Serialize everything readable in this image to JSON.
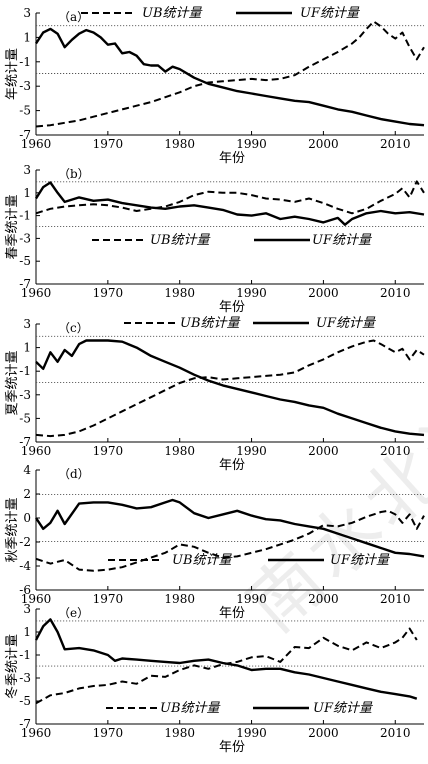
{
  "style": {
    "line_color": "#000000",
    "ref_color": "#555555"
  },
  "watermark": "南水北调",
  "legend_labels": {
    "ub": "UB统计量",
    "uf": "UF统计量"
  },
  "chart_data": [
    {
      "id": "a",
      "type": "line",
      "panel_label": "（a）",
      "xlabel": "年份",
      "ylabel": "年统计量",
      "xlim": [
        1960,
        2014
      ],
      "ylim": [
        -7,
        3
      ],
      "xticks": [
        1960,
        1970,
        1980,
        1990,
        2000,
        2010
      ],
      "yticks": [
        3,
        1,
        -1,
        -3,
        -5,
        -7
      ],
      "ref_lines": [
        1.96,
        -1.96
      ],
      "legend_position": "top",
      "series": [
        {
          "name": "UB统计量",
          "style": "dashed",
          "x": [
            1960,
            1962,
            1964,
            1966,
            1968,
            1970,
            1972,
            1974,
            1976,
            1978,
            1980,
            1982,
            1984,
            1986,
            1988,
            1990,
            1992,
            1994,
            1996,
            1998,
            2000,
            2002,
            2004,
            2005,
            2006,
            2007,
            2008,
            2009,
            2010,
            2011,
            2012,
            2013,
            2014
          ],
          "y": [
            -6.3,
            -6.2,
            -6.0,
            -5.8,
            -5.5,
            -5.2,
            -4.9,
            -4.6,
            -4.3,
            -3.9,
            -3.5,
            -3.0,
            -2.7,
            -2.6,
            -2.5,
            -2.4,
            -2.5,
            -2.4,
            -2.1,
            -1.4,
            -0.8,
            -0.2,
            0.5,
            1.0,
            1.7,
            2.3,
            1.9,
            1.3,
            0.9,
            1.4,
            0.2,
            -0.8,
            0.2
          ]
        },
        {
          "name": "UF统计量",
          "style": "solid",
          "x": [
            1960,
            1961,
            1962,
            1963,
            1964,
            1965,
            1966,
            1967,
            1968,
            1969,
            1970,
            1971,
            1972,
            1973,
            1974,
            1975,
            1976,
            1977,
            1978,
            1979,
            1980,
            1982,
            1984,
            1986,
            1988,
            1990,
            1992,
            1994,
            1996,
            1998,
            2000,
            2002,
            2004,
            2006,
            2008,
            2010,
            2012,
            2014
          ],
          "y": [
            0.5,
            1.4,
            1.7,
            1.3,
            0.2,
            0.8,
            1.3,
            1.6,
            1.4,
            1.0,
            0.4,
            0.5,
            -0.3,
            -0.2,
            -0.5,
            -1.2,
            -1.3,
            -1.3,
            -1.8,
            -1.4,
            -1.6,
            -2.3,
            -2.8,
            -3.1,
            -3.4,
            -3.6,
            -3.8,
            -4.0,
            -4.2,
            -4.3,
            -4.6,
            -4.9,
            -5.1,
            -5.4,
            -5.7,
            -5.9,
            -6.1,
            -6.2
          ]
        }
      ]
    },
    {
      "id": "b",
      "type": "line",
      "panel_label": "（b）",
      "xlabel": "年份",
      "ylabel": "春季统计量",
      "xlim": [
        1960,
        2014
      ],
      "ylim": [
        -7,
        3
      ],
      "xticks": [
        1960,
        1970,
        1980,
        1990,
        2000,
        2010
      ],
      "yticks": [
        3,
        1,
        -1,
        -3,
        -5,
        -7
      ],
      "ref_lines": [
        1.96,
        -1.96
      ],
      "legend_position": "middle",
      "series": [
        {
          "name": "UB统计量",
          "style": "dashed",
          "x": [
            1960,
            1962,
            1964,
            1966,
            1968,
            1970,
            1972,
            1974,
            1976,
            1978,
            1980,
            1982,
            1984,
            1986,
            1988,
            1990,
            1992,
            1994,
            1996,
            1998,
            2000,
            2002,
            2004,
            2006,
            2008,
            2010,
            2011,
            2012,
            2013,
            2014
          ],
          "y": [
            -0.8,
            -0.4,
            -0.2,
            -0.1,
            0.0,
            -0.1,
            -0.3,
            -0.6,
            -0.4,
            -0.2,
            0.2,
            0.8,
            1.1,
            1.0,
            1.0,
            0.8,
            0.5,
            0.4,
            0.2,
            0.5,
            0.1,
            -0.4,
            -0.8,
            -0.4,
            0.3,
            0.9,
            1.4,
            0.6,
            2.0,
            1.0
          ]
        },
        {
          "name": "UF统计量",
          "style": "solid",
          "x": [
            1960,
            1961,
            1962,
            1963,
            1964,
            1966,
            1968,
            1970,
            1972,
            1974,
            1976,
            1978,
            1980,
            1982,
            1984,
            1986,
            1988,
            1990,
            1992,
            1994,
            1996,
            1998,
            2000,
            2002,
            2003,
            2004,
            2006,
            2008,
            2010,
            2012,
            2014
          ],
          "y": [
            0.5,
            1.5,
            1.9,
            1.0,
            0.2,
            0.6,
            0.3,
            0.4,
            0.1,
            -0.1,
            -0.3,
            -0.4,
            -0.2,
            -0.1,
            -0.3,
            -0.5,
            -0.9,
            -1.0,
            -0.8,
            -1.3,
            -1.1,
            -1.3,
            -1.6,
            -1.2,
            -1.8,
            -1.3,
            -0.8,
            -0.6,
            -0.8,
            -0.7,
            -0.9
          ]
        }
      ]
    },
    {
      "id": "c",
      "type": "line",
      "panel_label": "（c）",
      "xlabel": "年份",
      "ylabel": "夏季统计量",
      "xlim": [
        1960,
        2014
      ],
      "ylim": [
        -7,
        3
      ],
      "xticks": [
        1960,
        1970,
        1980,
        1990,
        2000,
        2010
      ],
      "yticks": [
        3,
        1,
        -1,
        -3,
        -5,
        -7
      ],
      "ref_lines": [
        1.96,
        -1.96
      ],
      "legend_position": "top",
      "series": [
        {
          "name": "UB统计量",
          "style": "dashed",
          "x": [
            1960,
            1962,
            1964,
            1966,
            1968,
            1970,
            1972,
            1974,
            1976,
            1978,
            1980,
            1982,
            1984,
            1986,
            1988,
            1990,
            1992,
            1994,
            1996,
            1998,
            2000,
            2002,
            2004,
            2006,
            2007,
            2008,
            2010,
            2011,
            2012,
            2013,
            2014
          ],
          "y": [
            -6.4,
            -6.5,
            -6.4,
            -6.1,
            -5.6,
            -5.0,
            -4.4,
            -3.8,
            -3.2,
            -2.6,
            -2.0,
            -1.6,
            -1.5,
            -1.7,
            -1.6,
            -1.5,
            -1.4,
            -1.3,
            -1.1,
            -0.5,
            0.0,
            0.6,
            1.1,
            1.5,
            1.6,
            1.3,
            0.6,
            0.9,
            0.0,
            0.8,
            0.4
          ]
        },
        {
          "name": "UF统计量",
          "style": "solid",
          "x": [
            1960,
            1961,
            1962,
            1963,
            1964,
            1965,
            1966,
            1967,
            1968,
            1970,
            1972,
            1974,
            1976,
            1978,
            1980,
            1982,
            1984,
            1986,
            1988,
            1990,
            1992,
            1994,
            1996,
            1998,
            2000,
            2002,
            2004,
            2006,
            2008,
            2010,
            2012,
            2014
          ],
          "y": [
            -0.2,
            -0.8,
            0.6,
            -0.2,
            0.8,
            0.3,
            1.3,
            1.6,
            1.6,
            1.6,
            1.5,
            1.0,
            0.3,
            -0.2,
            -0.7,
            -1.3,
            -1.8,
            -2.2,
            -2.5,
            -2.8,
            -3.1,
            -3.4,
            -3.6,
            -3.9,
            -4.1,
            -4.6,
            -5.0,
            -5.4,
            -5.8,
            -6.1,
            -6.3,
            -6.4
          ]
        }
      ]
    },
    {
      "id": "d",
      "type": "line",
      "panel_label": "（d）",
      "xlabel": "年份",
      "ylabel": "秋季统计量",
      "xlim": [
        1960,
        2014
      ],
      "ylim": [
        -6,
        4
      ],
      "xticks": [
        1960,
        1970,
        1980,
        1990,
        2000,
        2010
      ],
      "yticks": [
        4,
        2,
        0,
        -2,
        -4,
        -6
      ],
      "ref_lines": [
        1.96,
        -1.96
      ],
      "legend_position": "bottom",
      "series": [
        {
          "name": "UB统计量",
          "style": "dashed",
          "x": [
            1960,
            1962,
            1964,
            1966,
            1968,
            1970,
            1972,
            1974,
            1976,
            1978,
            1980,
            1982,
            1984,
            1986,
            1988,
            1990,
            1992,
            1994,
            1996,
            1998,
            2000,
            2002,
            2004,
            2006,
            2008,
            2009,
            2010,
            2011,
            2012,
            2013,
            2014
          ],
          "y": [
            -3.4,
            -3.8,
            -3.5,
            -4.3,
            -4.4,
            -4.3,
            -4.1,
            -3.7,
            -3.3,
            -2.9,
            -2.2,
            -2.4,
            -2.9,
            -3.3,
            -3.2,
            -2.9,
            -2.6,
            -2.2,
            -1.8,
            -1.3,
            -0.6,
            -0.7,
            -0.4,
            0.1,
            0.5,
            0.6,
            0.3,
            -0.4,
            0.3,
            -0.9,
            0.2
          ]
        },
        {
          "name": "UF统计量",
          "style": "solid",
          "x": [
            1960,
            1961,
            1962,
            1963,
            1964,
            1966,
            1968,
            1970,
            1972,
            1974,
            1976,
            1978,
            1979,
            1980,
            1982,
            1984,
            1986,
            1988,
            1990,
            1992,
            1994,
            1996,
            1998,
            2000,
            2002,
            2004,
            2006,
            2008,
            2010,
            2012,
            2014
          ],
          "y": [
            0.0,
            -0.9,
            -0.4,
            0.6,
            -0.5,
            1.2,
            1.3,
            1.3,
            1.1,
            0.8,
            0.9,
            1.3,
            1.5,
            1.3,
            0.4,
            0.0,
            0.3,
            0.6,
            0.2,
            -0.1,
            -0.2,
            -0.5,
            -0.7,
            -0.9,
            -1.3,
            -1.7,
            -2.1,
            -2.5,
            -2.9,
            -3.0,
            -3.2
          ]
        }
      ]
    },
    {
      "id": "e",
      "type": "line",
      "panel_label": "（e）",
      "xlabel": "年份",
      "ylabel": "冬季统计量",
      "xlim": [
        1960,
        2014
      ],
      "ylim": [
        -7,
        3
      ],
      "xticks": [
        1960,
        1970,
        1980,
        1990,
        2000,
        2010
      ],
      "yticks": [
        3,
        1,
        -1,
        -3,
        -5,
        -7
      ],
      "ref_lines": [
        1.96,
        -1.96
      ],
      "legend_position": "bottom",
      "series": [
        {
          "name": "UB统计量",
          "style": "dashed",
          "x": [
            1960,
            1962,
            1964,
            1966,
            1968,
            1970,
            1972,
            1974,
            1976,
            1978,
            1980,
            1982,
            1984,
            1986,
            1988,
            1990,
            1992,
            1994,
            1996,
            1998,
            2000,
            2002,
            2004,
            2006,
            2008,
            2010,
            2011,
            2012,
            2013
          ],
          "y": [
            -5.2,
            -4.5,
            -4.3,
            -3.9,
            -3.7,
            -3.6,
            -3.3,
            -3.5,
            -2.8,
            -2.9,
            -2.3,
            -1.9,
            -2.2,
            -1.8,
            -1.6,
            -1.2,
            -1.1,
            -1.6,
            -0.3,
            -0.4,
            0.5,
            -0.2,
            -0.6,
            0.1,
            -0.4,
            0.1,
            0.5,
            1.3,
            0.3
          ]
        },
        {
          "name": "UF统计量",
          "style": "solid",
          "x": [
            1960,
            1961,
            1962,
            1963,
            1964,
            1966,
            1968,
            1970,
            1971,
            1972,
            1974,
            1976,
            1978,
            1980,
            1982,
            1984,
            1986,
            1988,
            1990,
            1992,
            1994,
            1996,
            1998,
            2000,
            2002,
            2004,
            2006,
            2008,
            2010,
            2012,
            2013
          ],
          "y": [
            0.3,
            1.5,
            2.1,
            1.0,
            -0.5,
            -0.4,
            -0.6,
            -1.0,
            -1.5,
            -1.3,
            -1.4,
            -1.5,
            -1.6,
            -1.7,
            -1.5,
            -1.4,
            -1.7,
            -1.9,
            -2.3,
            -2.2,
            -2.2,
            -2.5,
            -2.7,
            -3.0,
            -3.3,
            -3.6,
            -3.9,
            -4.2,
            -4.4,
            -4.6,
            -4.8
          ]
        }
      ]
    }
  ]
}
